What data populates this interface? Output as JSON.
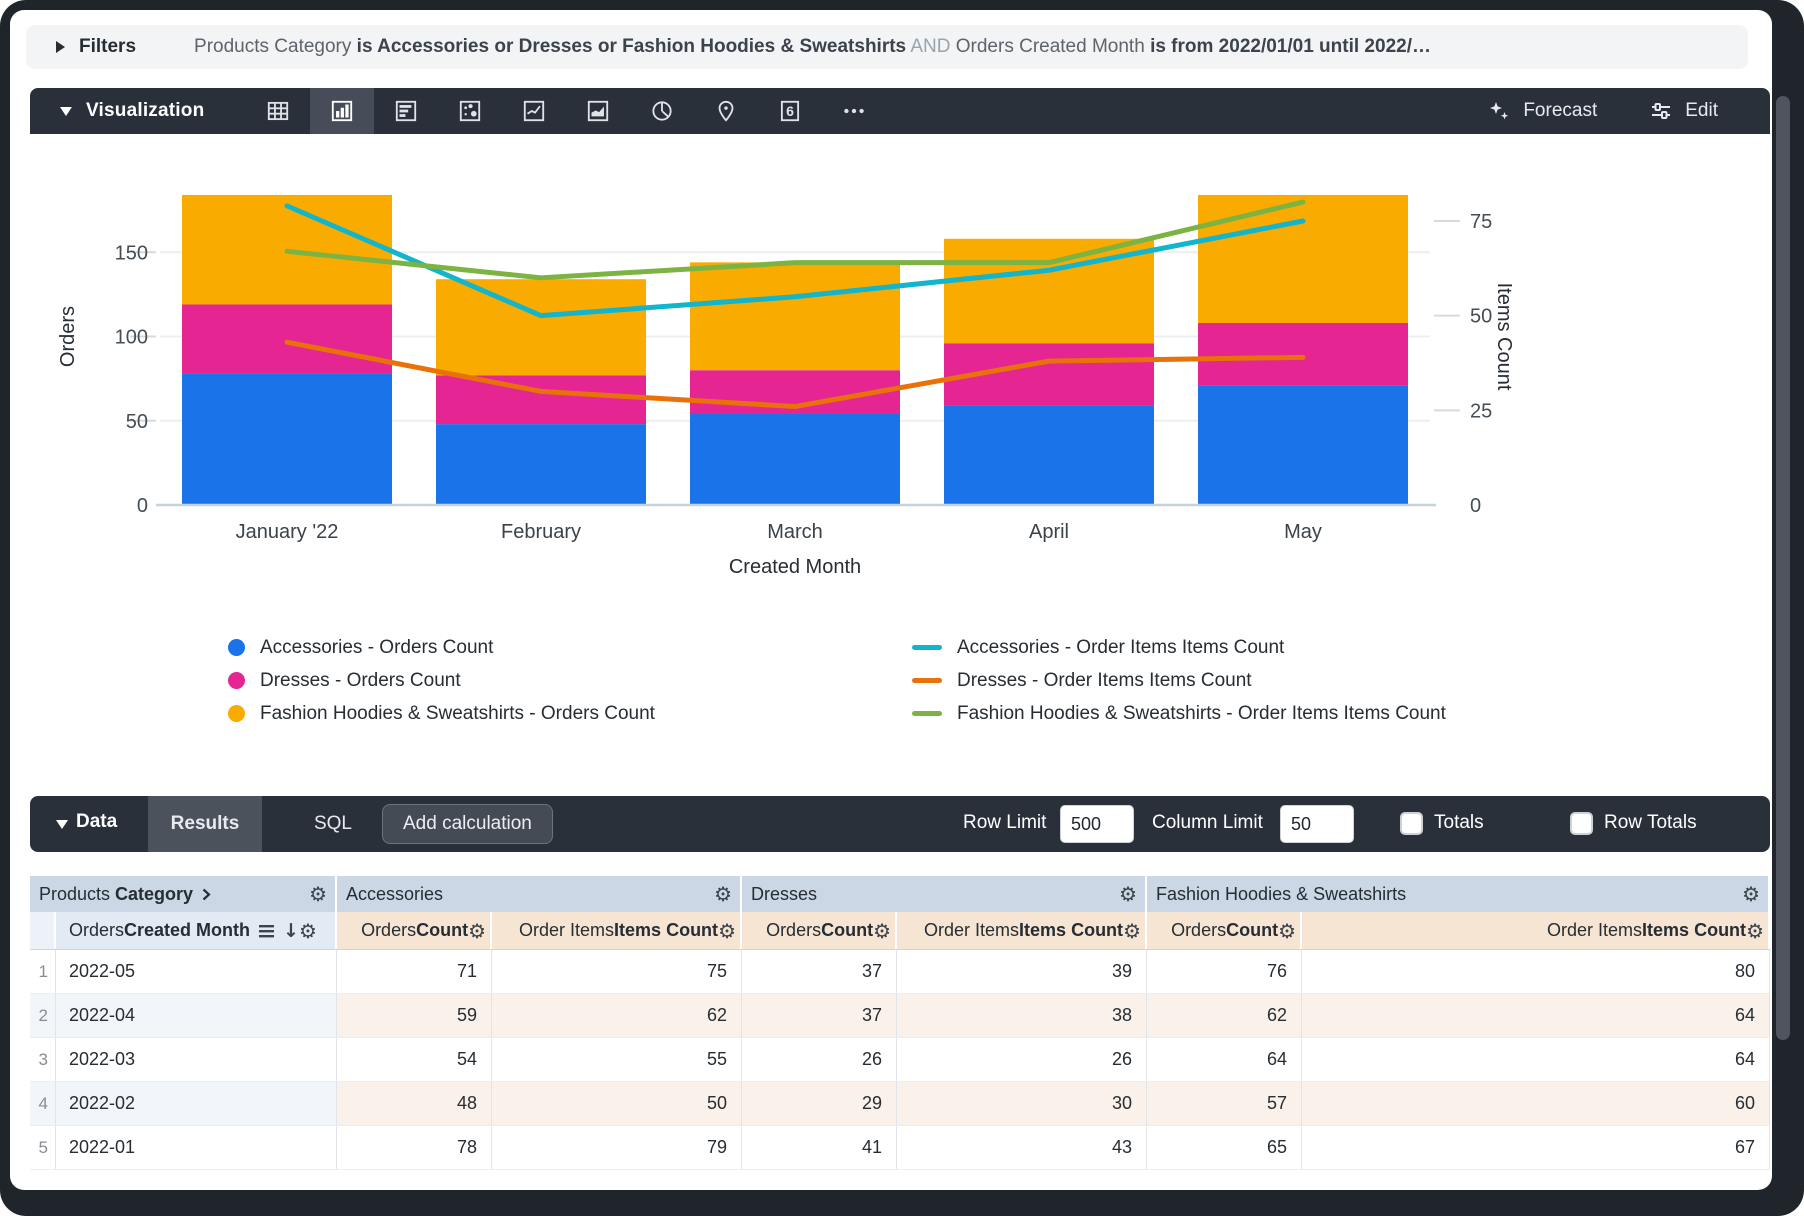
{
  "filters_bar": {
    "label": "Filters",
    "segments": [
      {
        "text": "Products Category ",
        "style": "normal"
      },
      {
        "text": "is Accessories or Dresses or Fashion Hoodies & Sweatshirts",
        "style": "bold"
      },
      {
        "text": " AND ",
        "style": "faded"
      },
      {
        "text": "Orders Created Month ",
        "style": "normal"
      },
      {
        "text": "is from 2022/01/01 until 2022/…",
        "style": "bold"
      }
    ]
  },
  "viz_toolbar": {
    "title": "Visualization",
    "icons": [
      "table",
      "column-chart",
      "bar-chart",
      "scatter",
      "line-chart",
      "area-chart",
      "pie-chart",
      "map",
      "single-value-6",
      "more"
    ],
    "selected_icon": "column-chart",
    "forecast_label": "Forecast",
    "edit_label": "Edit"
  },
  "chart_data": {
    "type": "combo-stacked-bar-line",
    "categories": [
      "January '22",
      "February",
      "March",
      "April",
      "May"
    ],
    "x_axis_title": "Created Month",
    "left_axis": {
      "title": "Orders",
      "ticks": [
        0,
        50,
        100,
        150
      ],
      "max": 200
    },
    "right_axis": {
      "title": "Items Count",
      "ticks": [
        0,
        25,
        50,
        75
      ],
      "max": 89
    },
    "bar_series": [
      {
        "name": "Accessories - Orders Count",
        "color": "#1A73E8",
        "values": [
          78,
          48,
          54,
          59,
          71
        ]
      },
      {
        "name": "Dresses - Orders Count",
        "color": "#E52592",
        "values": [
          41,
          29,
          26,
          37,
          37
        ]
      },
      {
        "name": "Fashion Hoodies & Sweatshirts - Orders Count",
        "color": "#F9AB00",
        "values": [
          65,
          57,
          64,
          62,
          76
        ]
      }
    ],
    "line_series": [
      {
        "name": "Accessories - Order Items Items Count",
        "color": "#12B5CB",
        "values": [
          79,
          50,
          55,
          62,
          75
        ]
      },
      {
        "name": "Dresses - Order Items Items Count",
        "color": "#E8710A",
        "values": [
          43,
          30,
          26,
          38,
          39
        ]
      },
      {
        "name": "Fashion Hoodies & Sweatshirts - Order Items Items Count",
        "color": "#7CB342",
        "values": [
          67,
          60,
          64,
          64,
          80
        ]
      }
    ]
  },
  "data_bar": {
    "title": "Data",
    "tabs": [
      "Results",
      "SQL"
    ],
    "active_tab": "Results",
    "add_calculation_label": "Add calculation",
    "row_limit_label": "Row Limit",
    "row_limit_value": "500",
    "column_limit_label": "Column Limit",
    "column_limit_value": "50",
    "totals_label": "Totals",
    "row_totals_label": "Row Totals",
    "totals_checked": false,
    "row_totals_checked": false
  },
  "table": {
    "dimension_group": {
      "normal": "Products ",
      "bold": "Category"
    },
    "pivot_groups": [
      "Accessories",
      "Dresses",
      "Fashion Hoodies & Sweatshirts"
    ],
    "dimension_subheader": {
      "normal": "Orders ",
      "bold": "Created Month"
    },
    "measure_subheaders": [
      {
        "normal": "Orders ",
        "bold": "Count"
      },
      {
        "normal": "Order Items ",
        "bold": "Items Count"
      }
    ],
    "rows": [
      {
        "num": "1",
        "month": "2022-05",
        "values": [
          71,
          75,
          37,
          39,
          76,
          80
        ]
      },
      {
        "num": "2",
        "month": "2022-04",
        "values": [
          59,
          62,
          37,
          38,
          62,
          64
        ]
      },
      {
        "num": "3",
        "month": "2022-03",
        "values": [
          54,
          55,
          26,
          26,
          64,
          64
        ]
      },
      {
        "num": "4",
        "month": "2022-02",
        "values": [
          48,
          50,
          29,
          30,
          57,
          60
        ]
      },
      {
        "num": "5",
        "month": "2022-01",
        "values": [
          78,
          79,
          41,
          43,
          65,
          67
        ]
      }
    ]
  }
}
